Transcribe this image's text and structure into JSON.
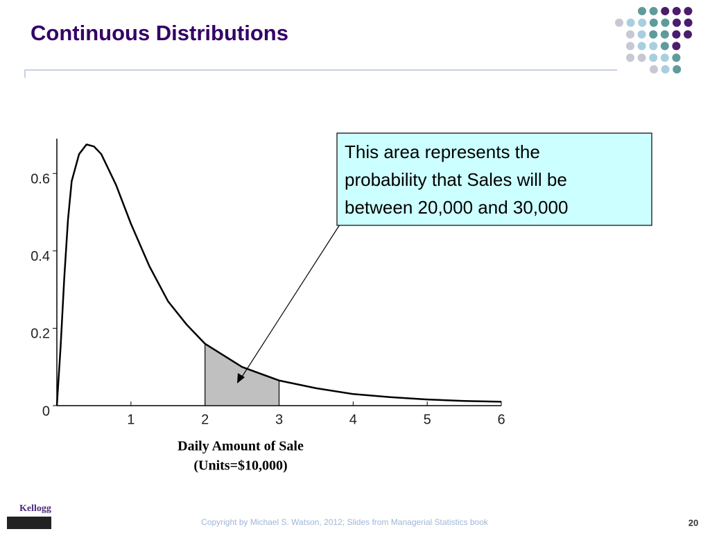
{
  "slide": {
    "title": "Continuous Distributions",
    "footer": "Copyright by Michael S. Watson, 2012;  Slides from Managerial Statistics book",
    "page_number": "20",
    "logo": "Kellogg"
  },
  "chart_data": {
    "type": "line",
    "x": [
      0,
      0.05,
      0.1,
      0.15,
      0.2,
      0.3,
      0.4,
      0.5,
      0.6,
      0.8,
      1.0,
      1.25,
      1.5,
      1.75,
      2.0,
      2.5,
      3.0,
      3.5,
      4.0,
      4.5,
      5.0,
      5.5,
      6.0
    ],
    "y": [
      0,
      0.15,
      0.33,
      0.48,
      0.58,
      0.65,
      0.675,
      0.67,
      0.65,
      0.57,
      0.47,
      0.36,
      0.27,
      0.21,
      0.16,
      0.1,
      0.065,
      0.045,
      0.03,
      0.022,
      0.016,
      0.012,
      0.01
    ],
    "color": "#000000",
    "xlim": [
      0,
      6
    ],
    "ylim": [
      0,
      0.69
    ],
    "xticks": [
      1,
      2,
      3,
      4,
      5,
      6
    ],
    "yticks": [
      0,
      0.2,
      0.4,
      0.6
    ],
    "xlabel": [
      "Daily Amount of Sale",
      "(Units=$10,000)"
    ],
    "highlight_range": [
      2,
      3
    ],
    "highlight_color": "#c0c0c0",
    "annotation": [
      "This area represents the",
      "probability that Sales will be",
      "between 20,000 and 30,000"
    ]
  }
}
